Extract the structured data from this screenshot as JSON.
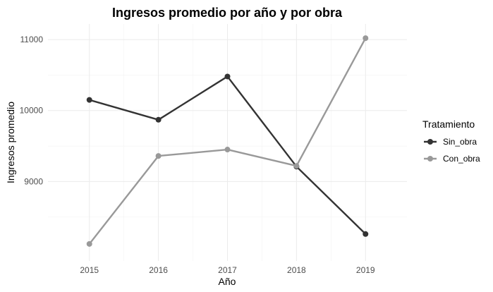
{
  "chart_data": {
    "type": "line",
    "title": "Ingresos promedio por año y por obra",
    "xlabel": "Año",
    "ylabel": "Ingresos promedio",
    "x": [
      2015,
      2016,
      2017,
      2018,
      2019
    ],
    "x_tick_labels": [
      "2015",
      "2016",
      "2017",
      "2018",
      "2019"
    ],
    "y_ticks": [
      9000,
      10000,
      11000
    ],
    "y_tick_labels": [
      "9000",
      "10000",
      "11000"
    ],
    "ylim": [
      7880,
      11220
    ],
    "grid": true,
    "legend": {
      "title": "Tratamiento",
      "position": "right"
    },
    "series": [
      {
        "name": "Sin_obra",
        "color": "#333333",
        "values": [
          10150,
          9870,
          10480,
          9210,
          8260
        ]
      },
      {
        "name": "Con_obra",
        "color": "#999999",
        "values": [
          8120,
          9360,
          9450,
          9220,
          11020
        ]
      }
    ]
  }
}
